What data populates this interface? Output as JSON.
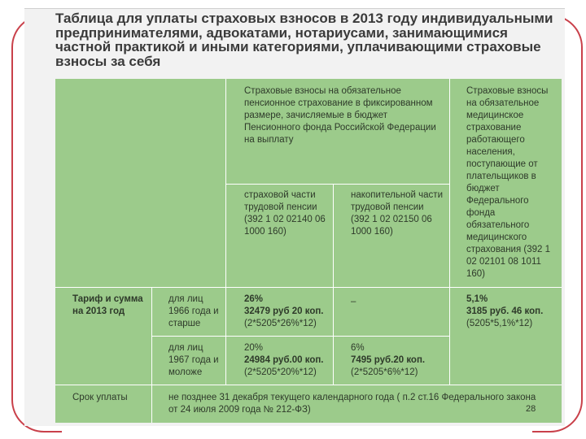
{
  "title": "Таблица для уплаты страховых взносов в 2013 году индивидуальными предпринимателями, адвокатами, нотариусами, занимающимися частной практикой и иными категориями, уплачивающими страховые взносы за себя",
  "table": {
    "header_pension": "Страховые взносы на обязательное пенсионное страхование в фиксированном размере, зачисляемые в бюджет Пенсионного фонда Российской Федерации на выплату",
    "header_medical": "Страховые взносы на обязательное медицинское страхование работающего населения, поступающие от плательщиков в бюджет Федерального фонда обязательного медицинского страхования (392 1 02 02101 08 1011 160)",
    "sub_insurance": "страховой части трудовой пенсии (392 1 02 02140 06 1000 160)",
    "sub_funded": "накопительной части трудовой пенсии (392 1 02 02150 06 1000 160)",
    "tariff_label": "Тариф и сумма на 2013 год",
    "row1": {
      "group": "для лиц 1966 года и старше",
      "ins_pct": "26%",
      "ins_sum": "32479 руб 20 коп.",
      "ins_formula": "(2*5205*26%*12)",
      "funded": "–",
      "med_pct": "5,1%",
      "med_sum": "3185 руб. 46 коп.",
      "med_formula": "(5205*5,1%*12)"
    },
    "row2": {
      "group": "для лиц 1967 года и моложе",
      "ins_pct": "20%",
      "ins_sum": "24984 руб.00 коп.",
      "ins_formula": "(2*5205*20%*12)",
      "fund_pct": "6%",
      "fund_sum": "7495 руб.20 коп.",
      "fund_formula": "(2*5205*6%*12)"
    },
    "deadline_label": "Срок уплаты",
    "deadline_text": "не позднее 31 декабря текущего календарного года ( п.2 ст.16 Федерального закона от 24 июля 2009 года № 212-ФЗ)"
  },
  "page_number": "28"
}
